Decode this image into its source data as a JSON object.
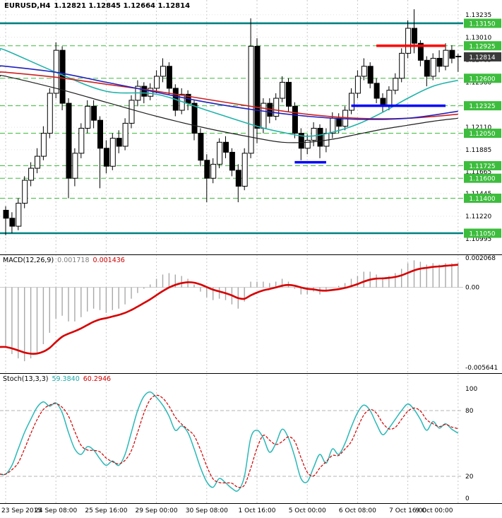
{
  "window": {
    "title_symbol": "EURUSD,H4",
    "title_ohlc": "1.12821 1.12845 1.12664 1.12814"
  },
  "colors": {
    "background": "#ffffff",
    "bull_candle": "#ffffff",
    "bear_candle": "#000000",
    "candle_outline": "#000000",
    "grid": "#c9c9c9",
    "grid_horizontal": "#e2e2e2",
    "level_green": "#3dbd3d",
    "level_teal": "#008080",
    "resistance_red": "#ff0000",
    "support_blue": "#0000ff",
    "current_price_bg": "#3a3a3a",
    "ma_red": "#d02020",
    "ma_blue": "#2020c0",
    "ma_teal": "#20b2aa",
    "ma_black": "#202020",
    "macd_histogram": "#a8a8a8",
    "macd_signal": "#d80000",
    "stoch_main": "#2ab8b8",
    "stoch_signal": "#d00000",
    "axis_text": "#000000",
    "separator": "#000000"
  },
  "chart_data": [
    {
      "type": "candlestick",
      "panel": "price",
      "symbol": "EURUSD",
      "timeframe": "H4",
      "current_bar": {
        "open": "1.12821",
        "high": "1.12845",
        "low": "1.12664",
        "close": "1.12814"
      },
      "x_labels": [
        "23 Sep 2015",
        "24 Sep 08:00",
        "25 Sep 16:00",
        "29 Sep 00:00",
        "30 Sep 08:00",
        "1 Oct 16:00",
        "5 Oct 00:00",
        "6 Oct 08:00",
        "7 Oct 16:00",
        "9 Oct 00:00"
      ],
      "x_label_indices": [
        0,
        8,
        16,
        24,
        32,
        40,
        48,
        56,
        64,
        72
      ],
      "ylim": [
        1.10838,
        1.13383
      ],
      "y_ticks": [
        "1.13235",
        "1.13010",
        "1.12785",
        "1.12560",
        "1.12335",
        "1.12110",
        "1.11885",
        "1.11665",
        "1.11445",
        "1.11220",
        "1.10995"
      ],
      "level_lines_green_dashed": [
        1.1315,
        1.12925,
        1.126,
        1.12325,
        1.1205,
        1.11725,
        1.116,
        1.114,
        1.1105
      ],
      "level_lines_teal_solid": [
        1.1315,
        1.1105
      ],
      "current_price": 1.12814,
      "red_resistance_segment": {
        "price": 1.12925,
        "from_index": 59,
        "to_index": 70
      },
      "blue_support_segments": [
        {
          "price": 1.12325,
          "from_index": 55,
          "to_index": 70
        },
        {
          "price": 1.1176,
          "from_index": 46,
          "to_index": 51
        }
      ],
      "candles_ohlc": [
        [
          1.1128,
          1.1132,
          1.1103,
          1.112
        ],
        [
          1.112,
          1.1126,
          1.1105,
          1.1112
        ],
        [
          1.1112,
          1.114,
          1.1108,
          1.1135
        ],
        [
          1.1135,
          1.1162,
          1.113,
          1.1158
        ],
        [
          1.1158,
          1.1176,
          1.1152,
          1.117
        ],
        [
          1.117,
          1.119,
          1.1165,
          1.1182
        ],
        [
          1.1182,
          1.1212,
          1.1178,
          1.1205
        ],
        [
          1.1205,
          1.125,
          1.12,
          1.1245
        ],
        [
          1.1245,
          1.1296,
          1.124,
          1.1288
        ],
        [
          1.1288,
          1.1292,
          1.1228,
          1.1235
        ],
        [
          1.1235,
          1.124,
          1.114,
          1.116
        ],
        [
          1.116,
          1.119,
          1.1152,
          1.1185
        ],
        [
          1.1185,
          1.1215,
          1.118,
          1.121
        ],
        [
          1.121,
          1.1238,
          1.1205,
          1.1232
        ],
        [
          1.1232,
          1.1238,
          1.121,
          1.1218
        ],
        [
          1.1218,
          1.1222,
          1.115,
          1.119
        ],
        [
          1.119,
          1.1198,
          1.1165,
          1.1172
        ],
        [
          1.1172,
          1.1205,
          1.1168,
          1.12
        ],
        [
          1.12,
          1.1208,
          1.1185,
          1.1192
        ],
        [
          1.1192,
          1.122,
          1.1188,
          1.1215
        ],
        [
          1.1215,
          1.1243,
          1.121,
          1.1238
        ],
        [
          1.1238,
          1.1258,
          1.1232,
          1.1252
        ],
        [
          1.1252,
          1.1256,
          1.1235,
          1.1242
        ],
        [
          1.1242,
          1.1255,
          1.1238,
          1.125
        ],
        [
          1.125,
          1.1268,
          1.1245,
          1.1262
        ],
        [
          1.1262,
          1.128,
          1.1256,
          1.1272
        ],
        [
          1.1272,
          1.1276,
          1.1244,
          1.125
        ],
        [
          1.125,
          1.1254,
          1.1222,
          1.1228
        ],
        [
          1.1228,
          1.125,
          1.1224,
          1.1244
        ],
        [
          1.1244,
          1.1248,
          1.1228,
          1.1235
        ],
        [
          1.1235,
          1.1238,
          1.1198,
          1.1205
        ],
        [
          1.1205,
          1.121,
          1.1172,
          1.1178
        ],
        [
          1.1178,
          1.1184,
          1.1136,
          1.116
        ],
        [
          1.116,
          1.118,
          1.1155,
          1.1174
        ],
        [
          1.1174,
          1.12,
          1.117,
          1.1196
        ],
        [
          1.1196,
          1.1202,
          1.118,
          1.1186
        ],
        [
          1.1186,
          1.119,
          1.1162,
          1.1168
        ],
        [
          1.1168,
          1.1174,
          1.1136,
          1.1152
        ],
        [
          1.1152,
          1.119,
          1.1148,
          1.1185
        ],
        [
          1.1185,
          1.132,
          1.118,
          1.1292
        ],
        [
          1.1292,
          1.13,
          1.1195,
          1.121
        ],
        [
          1.121,
          1.124,
          1.1205,
          1.1235
        ],
        [
          1.1235,
          1.124,
          1.1215,
          1.1222
        ],
        [
          1.1222,
          1.1245,
          1.1218,
          1.124
        ],
        [
          1.124,
          1.1262,
          1.1236,
          1.1256
        ],
        [
          1.1256,
          1.126,
          1.1226,
          1.1232
        ],
        [
          1.1232,
          1.1236,
          1.12,
          1.1205
        ],
        [
          1.1205,
          1.121,
          1.1178,
          1.119
        ],
        [
          1.119,
          1.1204,
          1.1184,
          1.1198
        ],
        [
          1.1198,
          1.1216,
          1.1192,
          1.121
        ],
        [
          1.121,
          1.1214,
          1.118,
          1.1192
        ],
        [
          1.1192,
          1.121,
          1.1186,
          1.1205
        ],
        [
          1.1205,
          1.1226,
          1.12,
          1.122
        ],
        [
          1.122,
          1.1225,
          1.1205,
          1.1212
        ],
        [
          1.1212,
          1.1232,
          1.1208,
          1.1228
        ],
        [
          1.1228,
          1.125,
          1.1224,
          1.1245
        ],
        [
          1.1245,
          1.1268,
          1.124,
          1.1262
        ],
        [
          1.1262,
          1.128,
          1.1258,
          1.1272
        ],
        [
          1.1272,
          1.1276,
          1.125,
          1.1255
        ],
        [
          1.1255,
          1.126,
          1.1235,
          1.124
        ],
        [
          1.124,
          1.1245,
          1.1226,
          1.1232
        ],
        [
          1.1232,
          1.1252,
          1.1228,
          1.1248
        ],
        [
          1.1248,
          1.1265,
          1.1244,
          1.126
        ],
        [
          1.126,
          1.129,
          1.1256,
          1.1285
        ],
        [
          1.1285,
          1.1318,
          1.128,
          1.131
        ],
        [
          1.131,
          1.1329,
          1.1285,
          1.1295
        ],
        [
          1.1295,
          1.1298,
          1.1272,
          1.1278
        ],
        [
          1.1278,
          1.1282,
          1.1252,
          1.1262
        ],
        [
          1.1262,
          1.1285,
          1.1258,
          1.128
        ],
        [
          1.128,
          1.1288,
          1.1266,
          1.1272
        ],
        [
          1.1272,
          1.1295,
          1.1268,
          1.1288
        ],
        [
          1.1288,
          1.1293,
          1.1275,
          1.128
        ],
        [
          1.12821,
          1.12845,
          1.12664,
          1.12814
        ]
      ],
      "moving_averages": [
        {
          "name": "ma-black",
          "color_key": "ma_black",
          "width": 1.2,
          "points": [
            [
              0,
              1.1262
            ],
            [
              8,
              1.125
            ],
            [
              16,
              1.1236
            ],
            [
              24,
              1.1222
            ],
            [
              32,
              1.121
            ],
            [
              40,
              1.12
            ],
            [
              44,
              1.1196
            ],
            [
              48,
              1.1196
            ],
            [
              52,
              1.1199
            ],
            [
              56,
              1.1204
            ],
            [
              60,
              1.1209
            ],
            [
              64,
              1.1213
            ],
            [
              68,
              1.1217
            ],
            [
              72,
              1.122
            ]
          ]
        },
        {
          "name": "ma-teal",
          "color_key": "ma_teal",
          "width": 1.6,
          "points": [
            [
              0,
              1.1288
            ],
            [
              8,
              1.1266
            ],
            [
              16,
              1.1247
            ],
            [
              24,
              1.1244
            ],
            [
              32,
              1.1228
            ],
            [
              40,
              1.1212
            ],
            [
              44,
              1.1206
            ],
            [
              48,
              1.1202
            ],
            [
              52,
              1.1206
            ],
            [
              56,
              1.1214
            ],
            [
              60,
              1.1226
            ],
            [
              64,
              1.124
            ],
            [
              68,
              1.1252
            ],
            [
              72,
              1.1258
            ]
          ]
        },
        {
          "name": "ma-red",
          "color_key": "ma_red",
          "width": 1.6,
          "points": [
            [
              0,
              1.1266
            ],
            [
              8,
              1.1261
            ],
            [
              16,
              1.1254
            ],
            [
              24,
              1.1247
            ],
            [
              32,
              1.1239
            ],
            [
              40,
              1.1231
            ],
            [
              48,
              1.1224
            ],
            [
              56,
              1.122
            ],
            [
              64,
              1.122
            ],
            [
              72,
              1.1224
            ]
          ]
        },
        {
          "name": "ma-blue",
          "color_key": "ma_blue",
          "width": 1.6,
          "points": [
            [
              0,
              1.1272
            ],
            [
              8,
              1.1266
            ],
            [
              16,
              1.1256
            ],
            [
              24,
              1.1246
            ],
            [
              32,
              1.1236
            ],
            [
              40,
              1.1228
            ],
            [
              48,
              1.1222
            ],
            [
              56,
              1.1219
            ],
            [
              64,
              1.122
            ],
            [
              72,
              1.1227
            ]
          ]
        }
      ]
    },
    {
      "type": "macd",
      "label": "MACD(12,26,9)",
      "value_main": "0.001718",
      "value_signal": "0.001436",
      "scale_max": 0.002068,
      "scale_min": -0.005641,
      "scale_max_label": "0.002068",
      "scale_zero_label": "0.00",
      "scale_min_label": "-0.005641",
      "signal_ema_period": 9,
      "histogram": [
        -0.0042,
        -0.0047,
        -0.005,
        -0.0052,
        -0.005,
        -0.0046,
        -0.004,
        -0.0032,
        -0.0022,
        -0.002,
        -0.0024,
        -0.0024,
        -0.0021,
        -0.0017,
        -0.0015,
        -0.0016,
        -0.0018,
        -0.0016,
        -0.0015,
        -0.0012,
        -0.0008,
        -0.0004,
        -0.0001,
        0.0002,
        0.0006,
        0.0009,
        0.001,
        0.0009,
        0.0008,
        0.0006,
        0.0002,
        -0.0003,
        -0.0007,
        -0.0009,
        -0.0008,
        -0.0009,
        -0.0012,
        -0.0015,
        -0.001,
        0.0004,
        0.0004,
        0.0004,
        0.0003,
        0.0004,
        0.0006,
        0.0004,
        -0.0001,
        -0.0005,
        -0.0005,
        -0.0003,
        -0.0005,
        -0.0003,
        0.0,
        0.0001,
        0.0003,
        0.0006,
        0.0008,
        0.0011,
        0.0011,
        0.0009,
        0.0007,
        0.0008,
        0.001,
        0.0013,
        0.0017,
        0.0019,
        0.0018,
        0.0016,
        0.0017,
        0.0016,
        0.0017,
        0.0017,
        0.001718
      ]
    },
    {
      "type": "stochastic",
      "label": "Stoch(13,3,3)",
      "value_main": "59.3840",
      "value_signal": "60.2946",
      "ylim": [
        0,
        100
      ],
      "levels": [
        20,
        80
      ],
      "scale_labels": [
        "100",
        "80",
        "20",
        "0"
      ],
      "signal_sma_period": 3,
      "main": [
        22,
        30,
        45,
        60,
        72,
        83,
        88,
        84,
        87,
        78,
        60,
        45,
        40,
        47,
        44,
        36,
        30,
        34,
        30,
        40,
        60,
        80,
        93,
        97,
        92,
        85,
        75,
        62,
        66,
        60,
        45,
        28,
        15,
        10,
        18,
        14,
        9,
        7,
        20,
        55,
        62,
        55,
        42,
        50,
        63,
        55,
        38,
        18,
        15,
        28,
        40,
        32,
        45,
        40,
        50,
        65,
        78,
        85,
        80,
        68,
        58,
        64,
        72,
        80,
        86,
        81,
        72,
        62,
        70,
        64,
        68,
        63,
        59.38
      ]
    }
  ]
}
